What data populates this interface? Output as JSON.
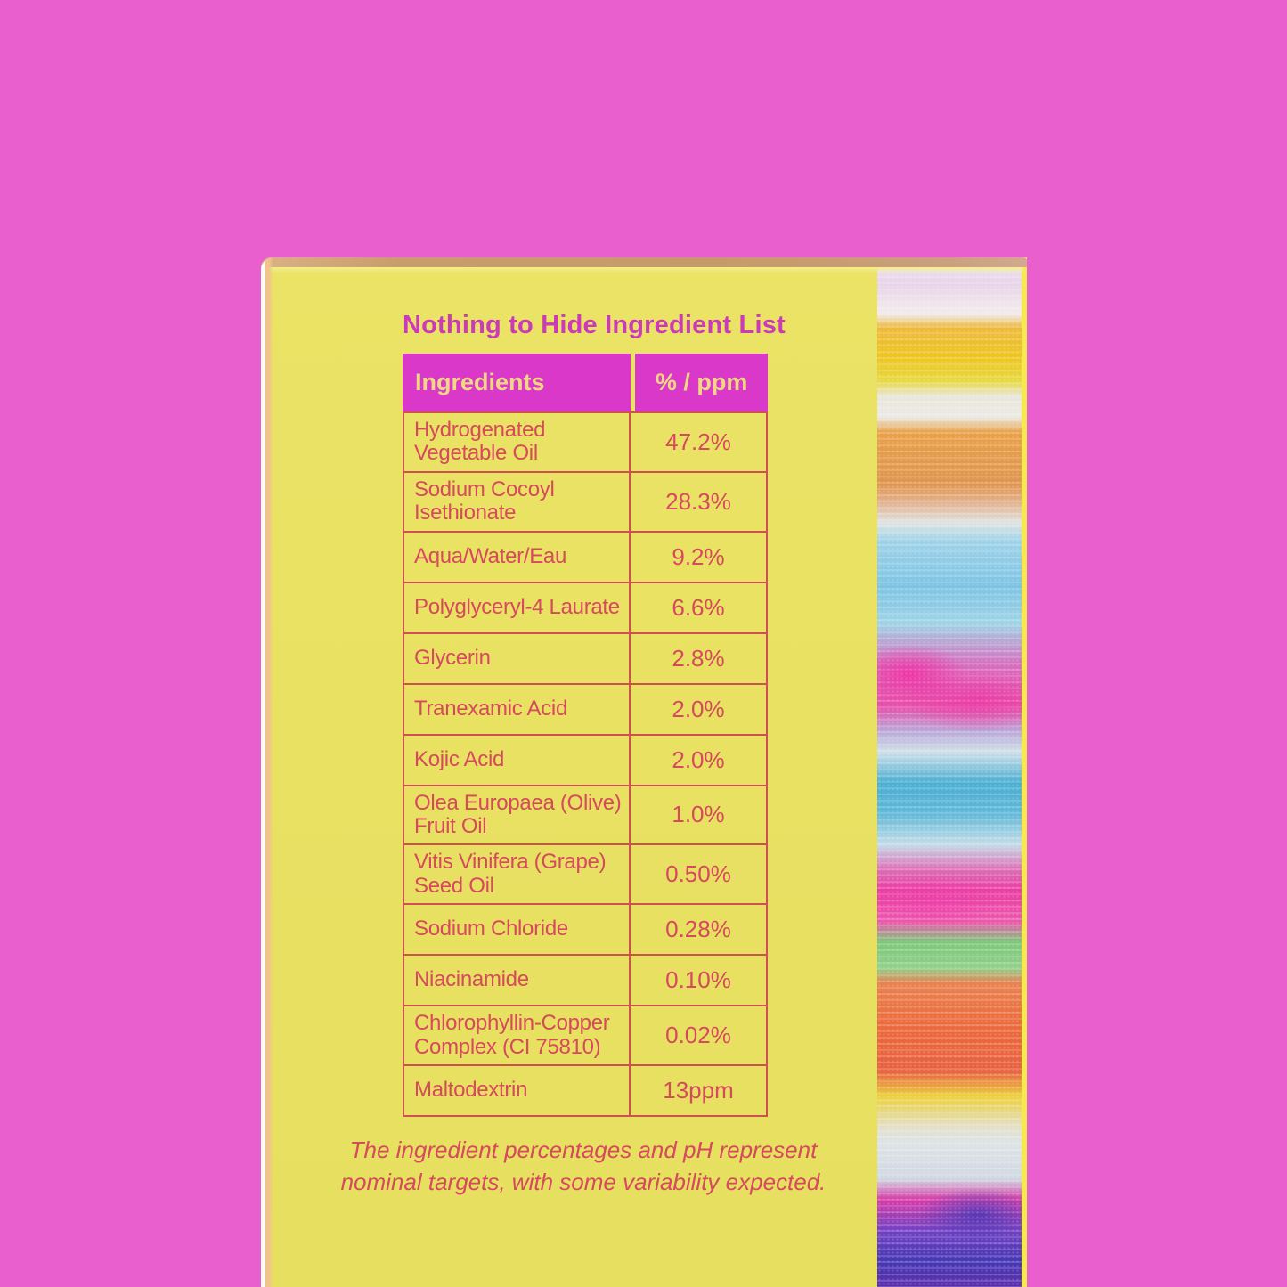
{
  "colors": {
    "background_pink": "#ea5fce",
    "box_yellow": "#e9e162",
    "title_magenta": "#cb3ab9",
    "header_magenta": "#da38c9",
    "header_text_yellow": "#f0d783",
    "table_text_red": "#d6495e",
    "table_border_red": "#d04f52",
    "stripe_palette": [
      "#f2ebec",
      "#eec41f",
      "#e8a047",
      "#7cc3e4",
      "#e94da9",
      "#4aaed2",
      "#ea3da4",
      "#7cc779",
      "#ec6a3b",
      "#ecd03c",
      "#dde3e6",
      "#d73aa6",
      "#4637b5"
    ]
  },
  "package": {
    "title": "Nothing to Hide Ingredient List",
    "table": {
      "header": {
        "ingredients": "Ingredients",
        "amount": "% / ppm"
      },
      "rows": [
        {
          "ingredient": "Hydrogenated Vegetable Oil",
          "amount": "47.2%"
        },
        {
          "ingredient": "Sodium Cocoyl Isethionate",
          "amount": "28.3%"
        },
        {
          "ingredient": "Aqua/Water/Eau",
          "amount": "9.2%"
        },
        {
          "ingredient": "Polyglyceryl-4 Laurate",
          "amount": "6.6%"
        },
        {
          "ingredient": "Glycerin",
          "amount": "2.8%"
        },
        {
          "ingredient": "Tranexamic Acid",
          "amount": "2.0%"
        },
        {
          "ingredient": "Kojic Acid",
          "amount": "2.0%"
        },
        {
          "ingredient": "Olea Europaea (Olive) Fruit Oil",
          "amount": "1.0%"
        },
        {
          "ingredient": "Vitis Vinifera (Grape) Seed Oil",
          "amount": "0.50%"
        },
        {
          "ingredient": "Sodium Chloride",
          "amount": "0.28%"
        },
        {
          "ingredient": "Niacinamide",
          "amount": "0.10%"
        },
        {
          "ingredient": "Chlorophyllin-Copper Complex (CI 75810)",
          "amount": "0.02%"
        },
        {
          "ingredient": "Maltodextrin",
          "amount": "13ppm"
        }
      ]
    },
    "footnote": "The ingredient percentages and pH represent nominal targets, with some variability expected."
  }
}
